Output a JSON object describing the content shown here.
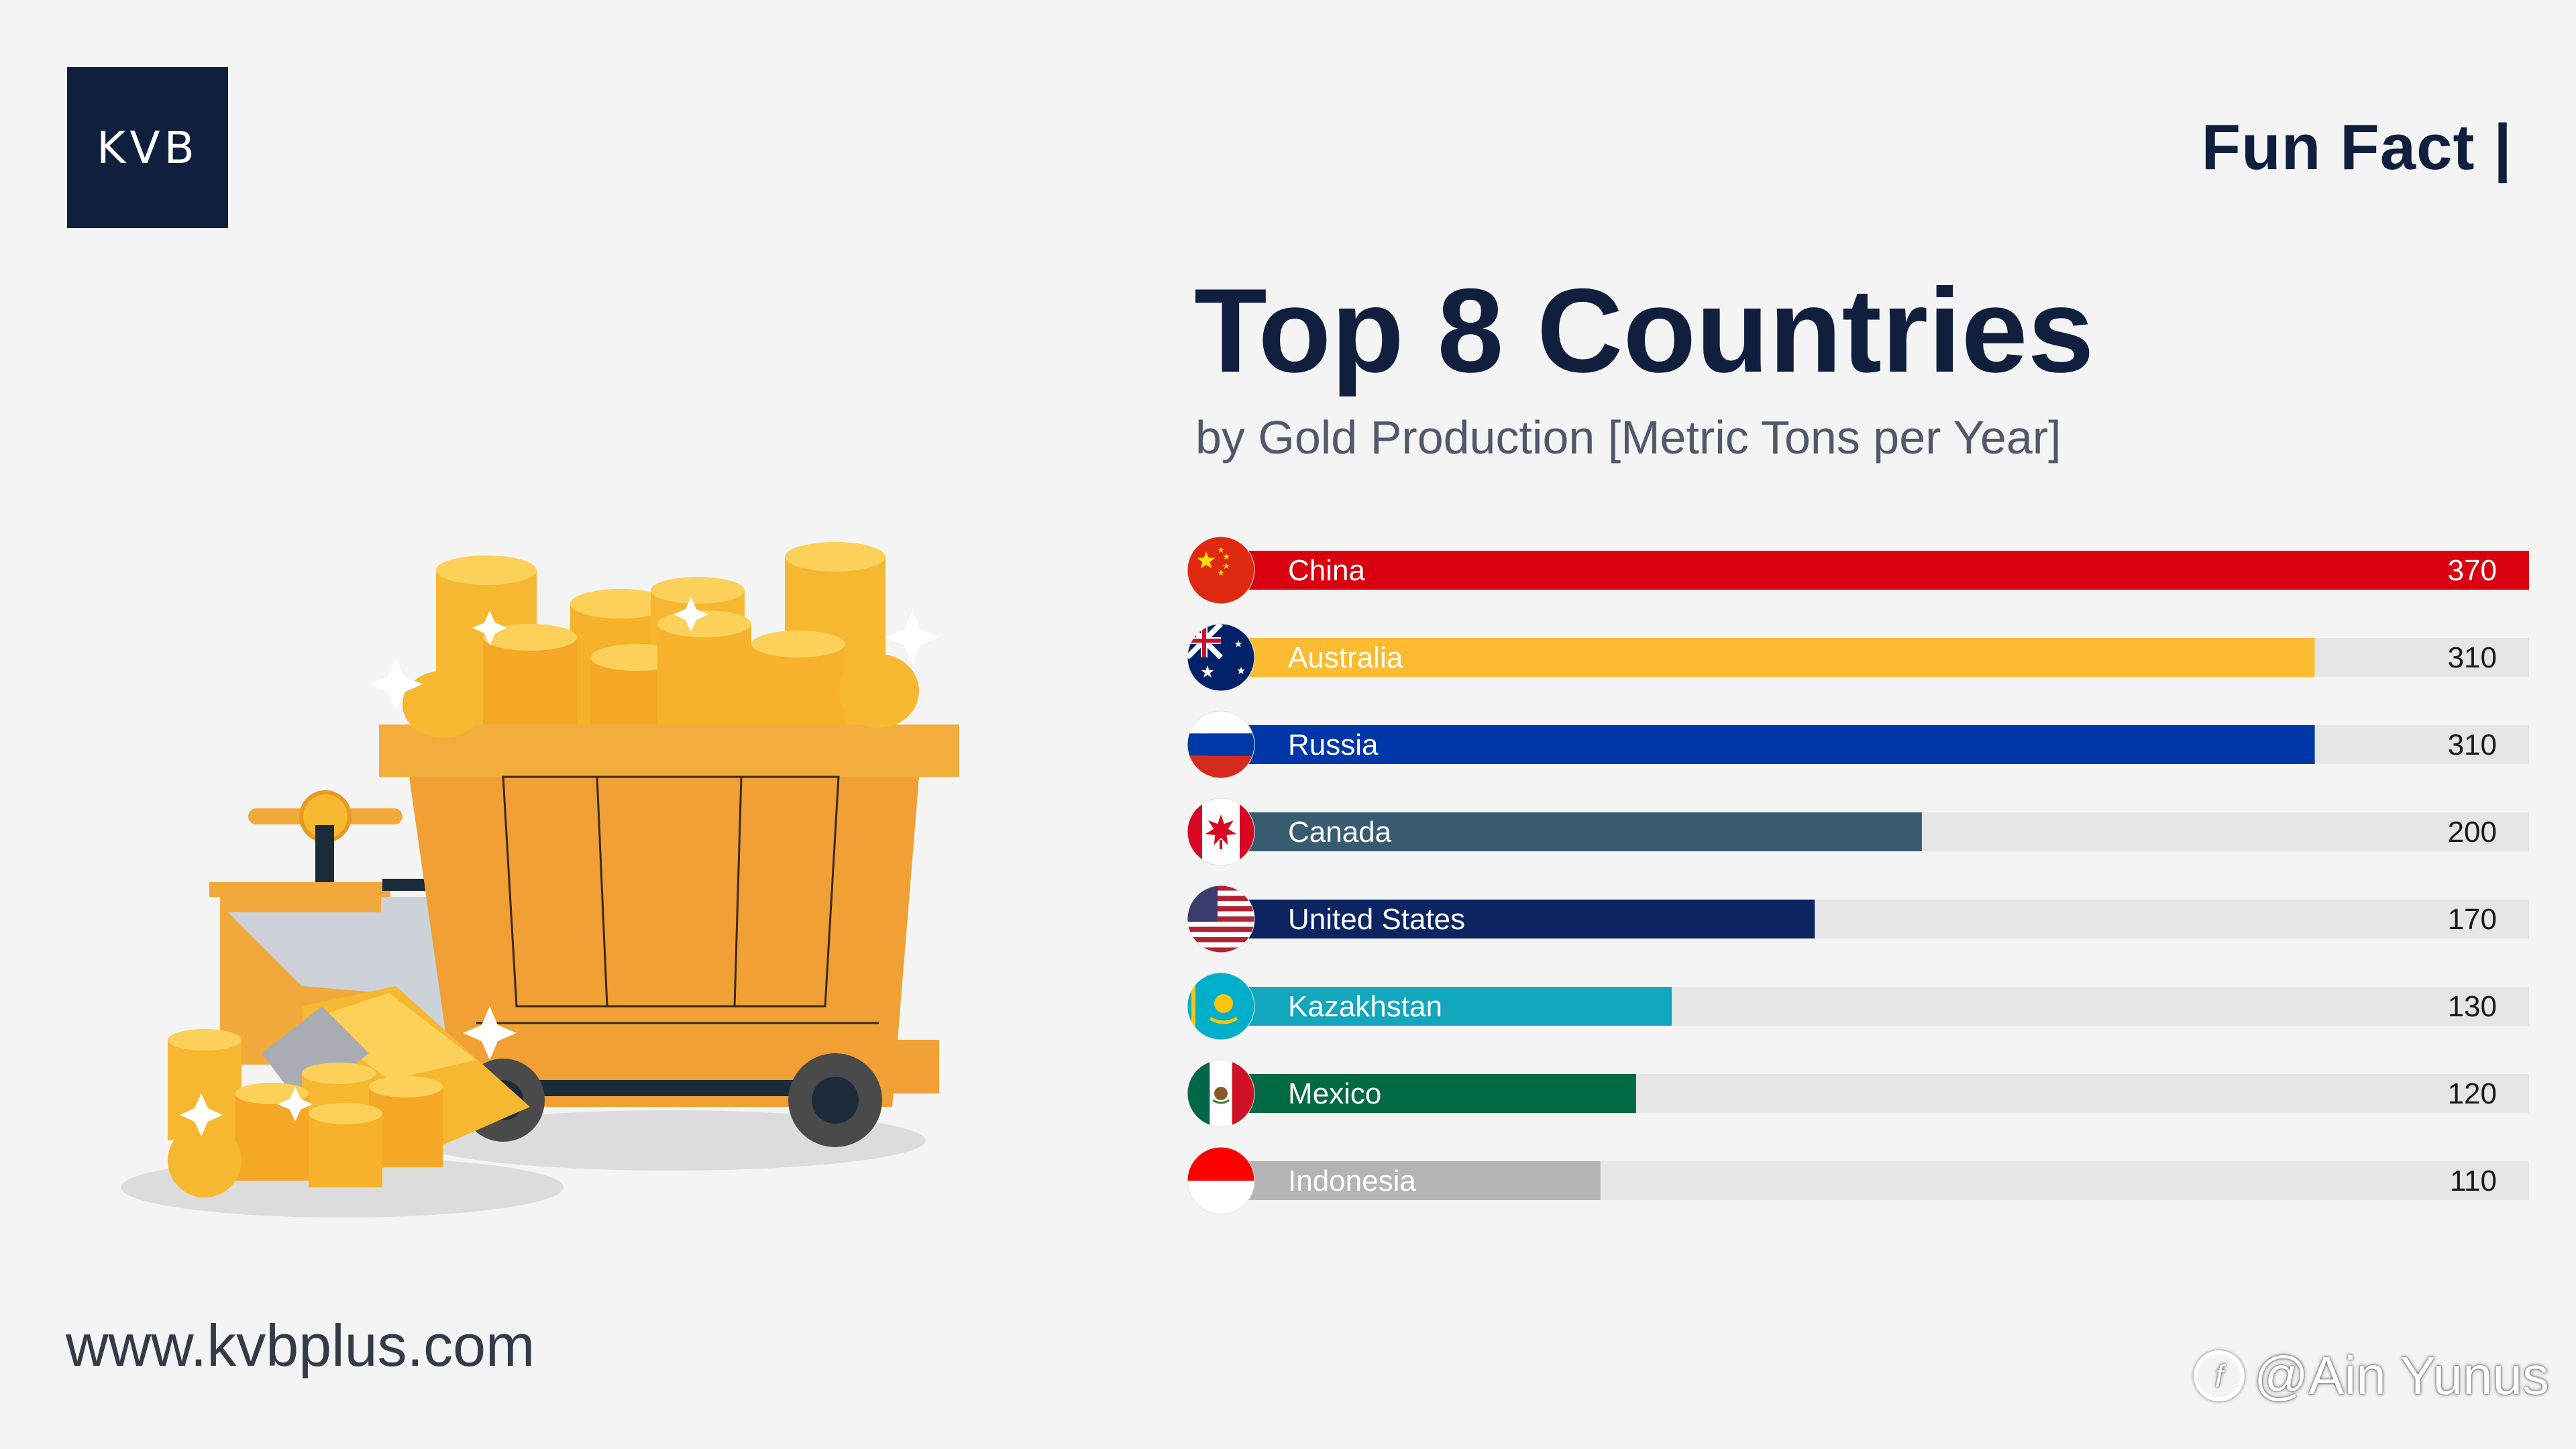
{
  "brand": {
    "logo_text": "KVB",
    "website": "www.kvbplus.com"
  },
  "header": {
    "fun_fact": "Fun Fact |"
  },
  "watermark": {
    "icon": "f",
    "text": "@Ain Yunus"
  },
  "chart_data": {
    "type": "bar",
    "orientation": "horizontal",
    "title": "Top 8 Countries",
    "subtitle": "by Gold Production [Metric Tons per Year]",
    "categories": [
      "China",
      "Australia",
      "Russia",
      "Canada",
      "United States",
      "Kazakhstan",
      "Mexico",
      "Indonesia"
    ],
    "values": [
      370,
      310,
      310,
      200,
      170,
      130,
      120,
      110
    ],
    "colors": [
      "#d9000f",
      "#fbbc31",
      "#0037a8",
      "#375c72",
      "#0c2462",
      "#13a7bd",
      "#006a43",
      "#b4b4b4"
    ],
    "flag_icons": [
      "china-flag-icon",
      "australia-flag-icon",
      "russia-flag-icon",
      "canada-flag-icon",
      "united-states-flag-icon",
      "kazakhstan-flag-icon",
      "mexico-flag-icon",
      "indonesia-flag-icon"
    ],
    "xlim": [
      0,
      370
    ],
    "grid": false,
    "legend": "none"
  }
}
